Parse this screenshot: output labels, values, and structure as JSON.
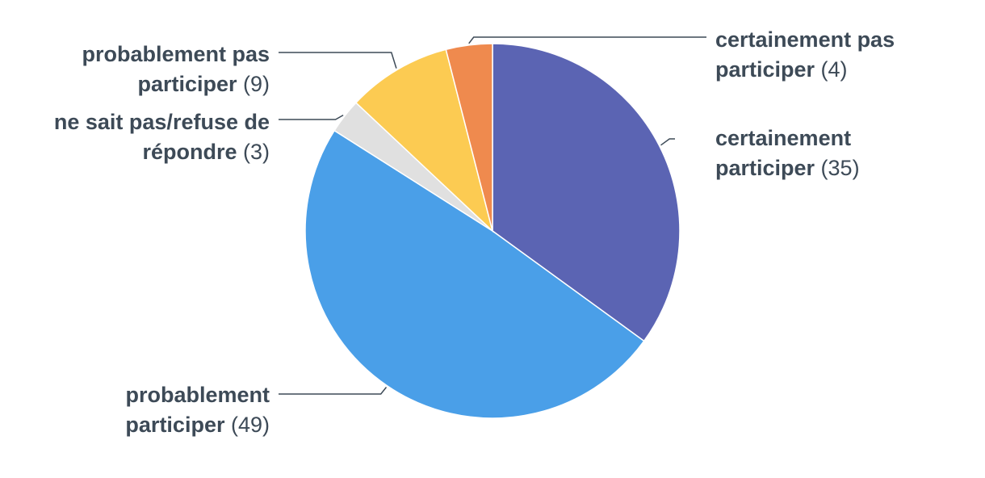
{
  "chart_data": {
    "type": "pie",
    "start_angle_deg": 0,
    "direction": "clockwise",
    "slices": [
      {
        "label_lines": [
          "certainement",
          "participer"
        ],
        "value": 35,
        "value_text": "(35)",
        "color": "#5b64b3"
      },
      {
        "label_lines": [
          "probablement",
          "participer"
        ],
        "value": 49,
        "value_text": "(49)",
        "color": "#4a9fe8"
      },
      {
        "label_lines": [
          "ne sait pas/refuse de",
          "répondre"
        ],
        "value": 3,
        "value_text": "(3)",
        "color": "#e0e0e0"
      },
      {
        "label_lines": [
          "probablement pas",
          "participer"
        ],
        "value": 9,
        "value_text": "(9)",
        "color": "#fccb52"
      },
      {
        "label_lines": [
          "certainement pas",
          "participer"
        ],
        "value": 4,
        "value_text": "(4)",
        "color": "#ef8a4e"
      }
    ]
  }
}
